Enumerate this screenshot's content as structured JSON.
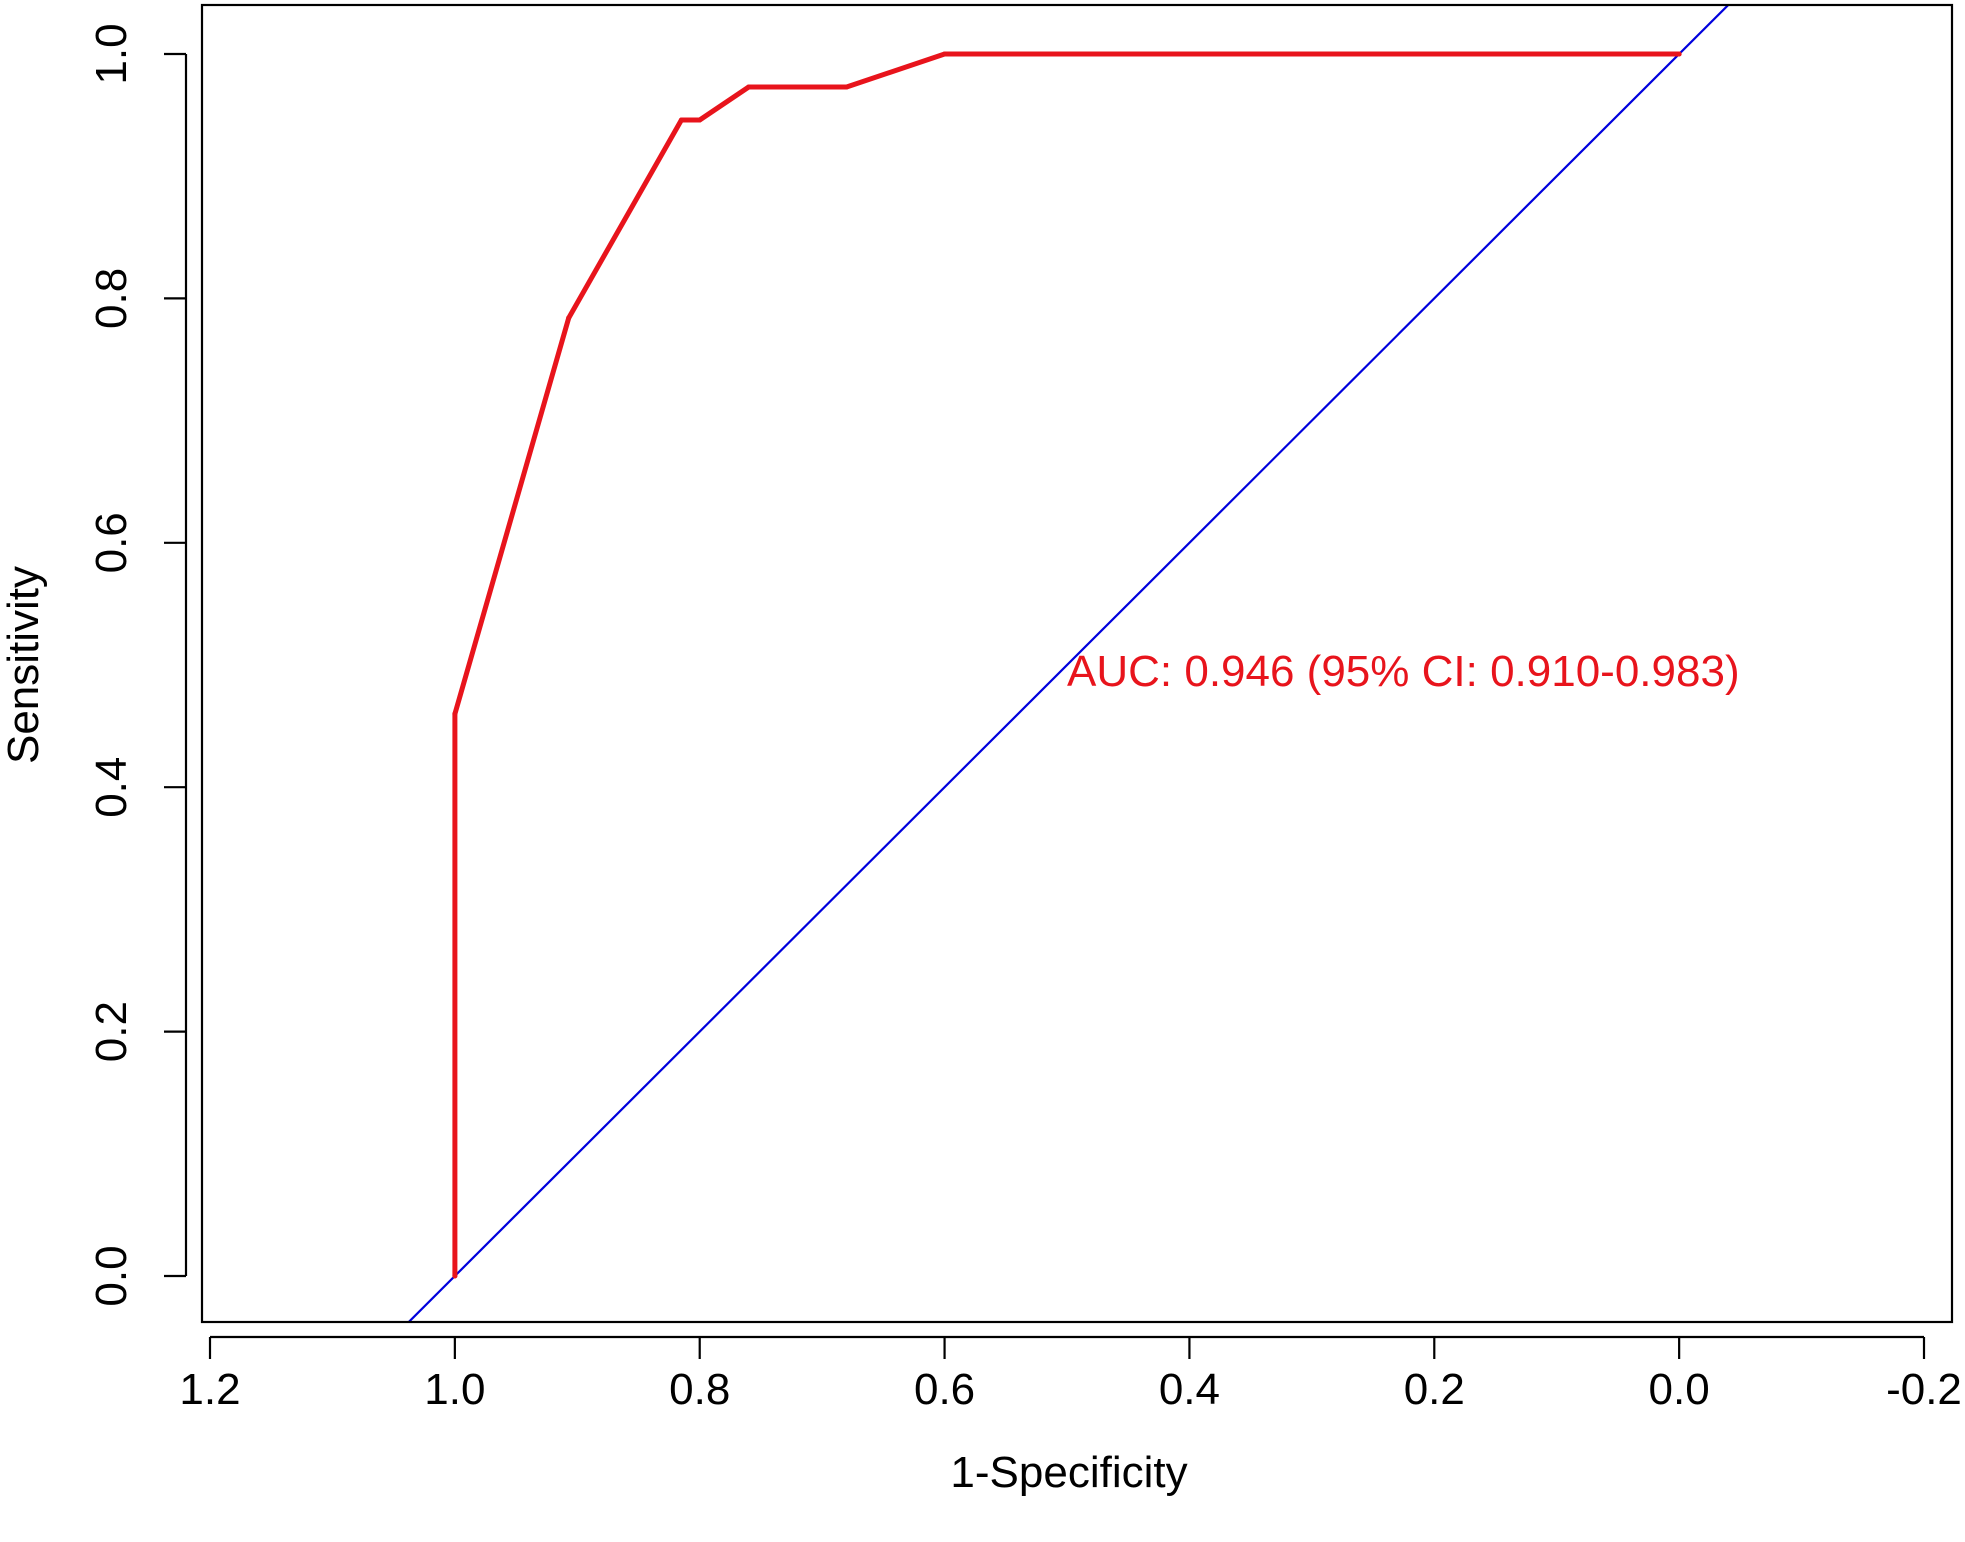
{
  "chart_data": {
    "type": "line",
    "xlabel": "1-Specificity",
    "ylabel": "Sensitivity",
    "xlim": [
      1.2,
      -0.2
    ],
    "ylim": [
      0.0,
      1.0
    ],
    "x_ticks": [
      1.2,
      1.0,
      0.8,
      0.6,
      0.4,
      0.2,
      0.0,
      -0.2
    ],
    "x_tick_labels": [
      "1.2",
      "1.0",
      "0.8",
      "0.6",
      "0.4",
      "0.2",
      "0.0",
      "-0.2"
    ],
    "y_ticks": [
      0.0,
      0.2,
      0.4,
      0.6,
      0.8,
      1.0
    ],
    "y_tick_labels": [
      "0.0",
      "0.2",
      "0.4",
      "0.6",
      "0.8",
      "1.0"
    ],
    "x_axis_reversed": true,
    "grid": false,
    "legend": "none",
    "series": [
      {
        "color": "#e8141c",
        "x": [
          1.0,
          1.0,
          0.907,
          0.815,
          0.8,
          0.76,
          0.68,
          0.6,
          0.0
        ],
        "y": [
          0.0,
          0.46,
          0.784,
          0.946,
          0.946,
          0.973,
          0.973,
          1.0,
          1.0
        ]
      }
    ],
    "reference_line": {
      "color": "#0000dd",
      "x": [
        1.2,
        -0.2
      ],
      "y": [
        -0.2,
        1.2
      ]
    },
    "annotations": [
      {
        "text": "AUC: 0.946 (95% CI: 0.910-0.983)",
        "x": 0.5,
        "y": 0.483,
        "color": "#e8141c"
      }
    ]
  }
}
